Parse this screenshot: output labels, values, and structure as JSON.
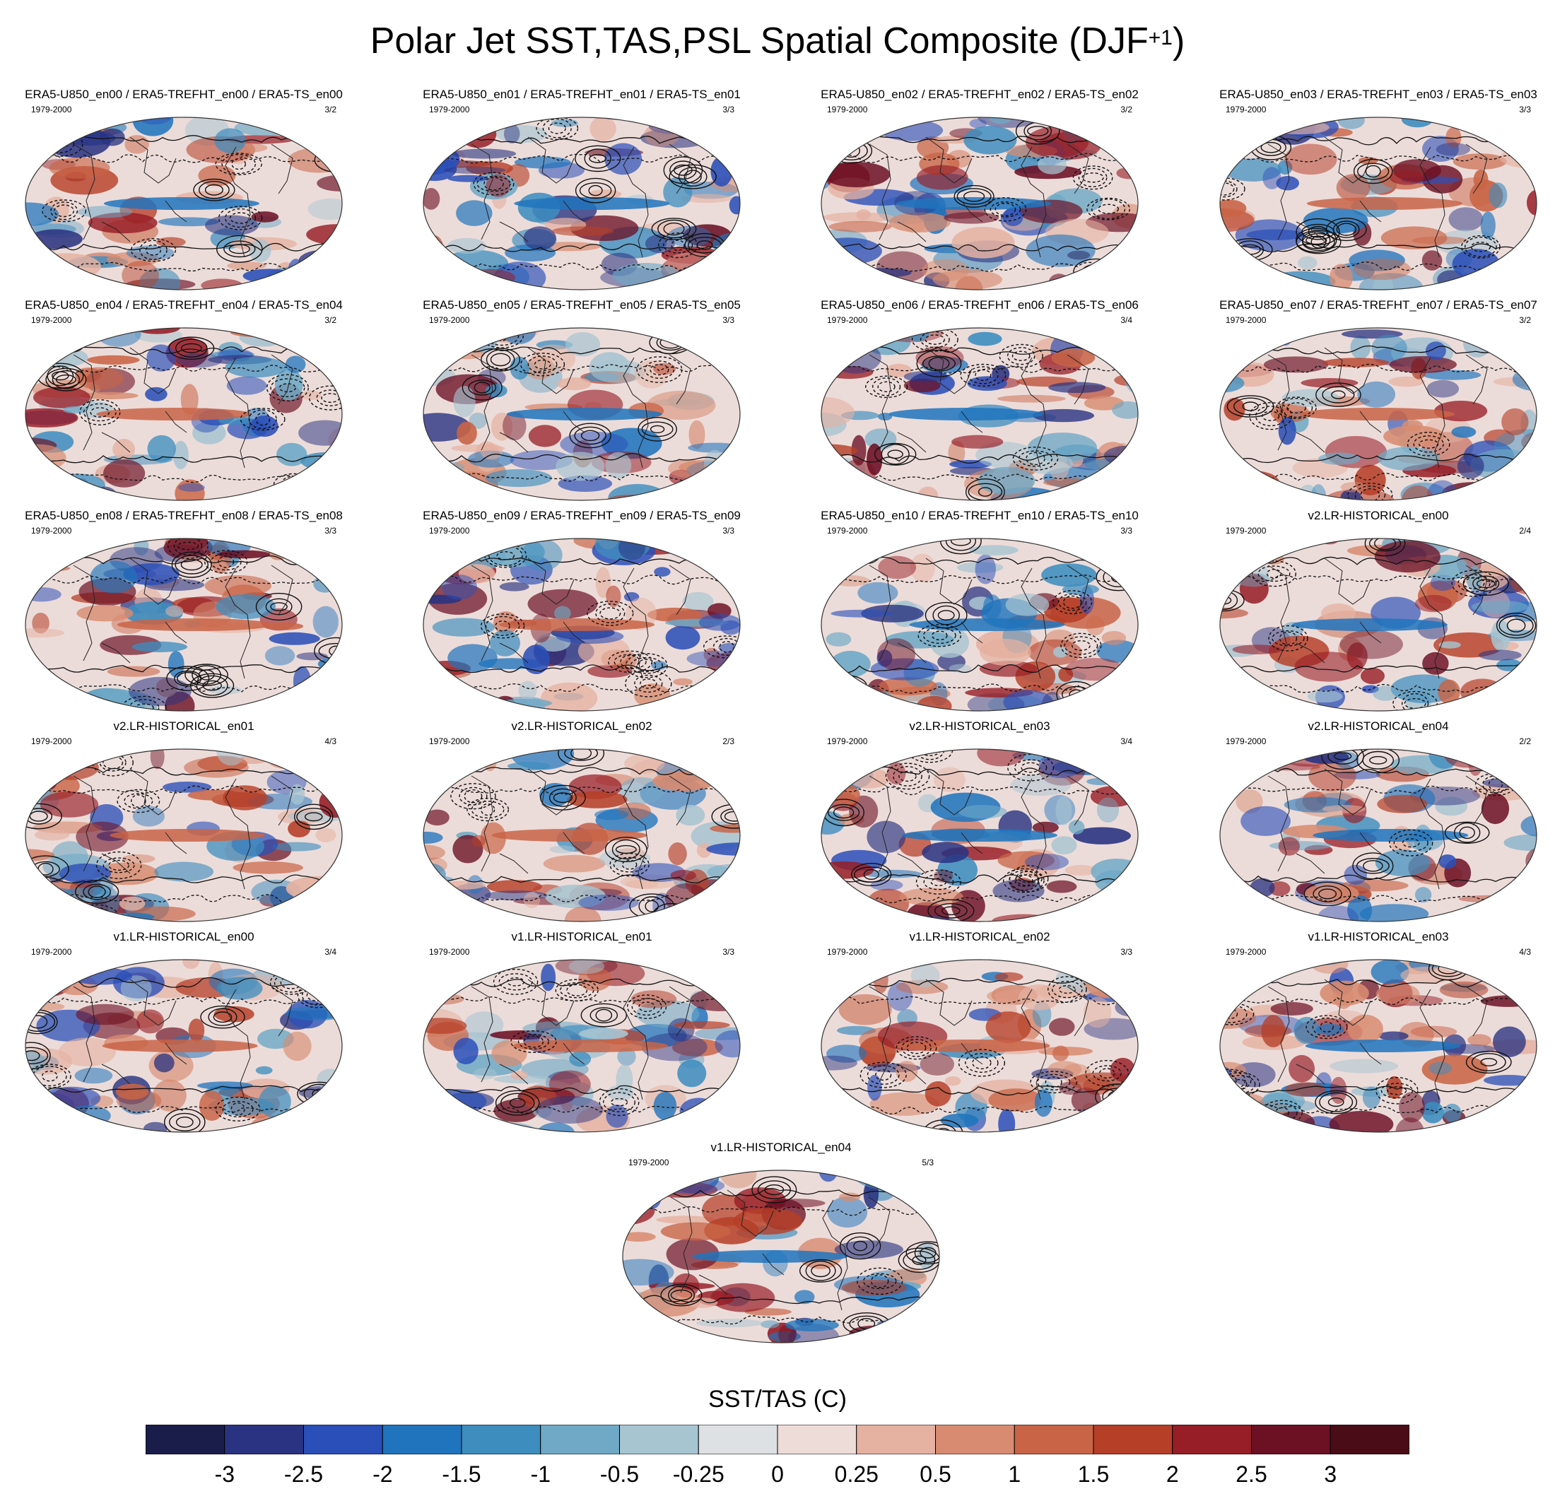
{
  "title": {
    "main": "Polar Jet SST,TAS,PSL Spatial Composite (DJF",
    "sup": "+1",
    "close": ")"
  },
  "colorbar": {
    "title": "SST/TAS (C)",
    "colors": [
      "#1a1d4a",
      "#2a3381",
      "#2b4fb8",
      "#2074bd",
      "#3d8dbf",
      "#6fa9c6",
      "#a7c4d1",
      "#dde1e4",
      "#eedcd8",
      "#e5b1a1",
      "#d88b70",
      "#c96446",
      "#b63f28",
      "#971d26",
      "#6c1024",
      "#4a0c16"
    ],
    "labels": [
      "-3",
      "-2.5",
      "-2",
      "-1.5",
      "-1",
      "-0.5",
      "-0.25",
      "0",
      "0.25",
      "0.5",
      "1",
      "1.5",
      "2",
      "2.5",
      "3"
    ]
  },
  "panels": [
    {
      "title": "ERA5-U850_en00 / ERA5-TREFHT_en00 / ERA5-TS_en00",
      "period": "1979-2000",
      "count": "3/2"
    },
    {
      "title": "ERA5-U850_en01 / ERA5-TREFHT_en01 / ERA5-TS_en01",
      "period": "1979-2000",
      "count": "3/3"
    },
    {
      "title": "ERA5-U850_en02 / ERA5-TREFHT_en02 / ERA5-TS_en02",
      "period": "1979-2000",
      "count": "3/2"
    },
    {
      "title": "ERA5-U850_en03 / ERA5-TREFHT_en03 / ERA5-TS_en03",
      "period": "1979-2000",
      "count": "3/3"
    },
    {
      "title": "ERA5-U850_en04 / ERA5-TREFHT_en04 / ERA5-TS_en04",
      "period": "1979-2000",
      "count": "3/2"
    },
    {
      "title": "ERA5-U850_en05 / ERA5-TREFHT_en05 / ERA5-TS_en05",
      "period": "1979-2000",
      "count": "3/3"
    },
    {
      "title": "ERA5-U850_en06 / ERA5-TREFHT_en06 / ERA5-TS_en06",
      "period": "1979-2000",
      "count": "3/4"
    },
    {
      "title": "ERA5-U850_en07 / ERA5-TREFHT_en07 / ERA5-TS_en07",
      "period": "1979-2000",
      "count": "3/2"
    },
    {
      "title": "ERA5-U850_en08 / ERA5-TREFHT_en08 / ERA5-TS_en08",
      "period": "1979-2000",
      "count": "3/3"
    },
    {
      "title": "ERA5-U850_en09 / ERA5-TREFHT_en09 / ERA5-TS_en09",
      "period": "1979-2000",
      "count": "3/3"
    },
    {
      "title": "ERA5-U850_en10 / ERA5-TREFHT_en10 / ERA5-TS_en10",
      "period": "1979-2000",
      "count": "3/3"
    },
    {
      "title": "v2.LR-HISTORICAL_en00",
      "period": "1979-2000",
      "count": "2/4"
    },
    {
      "title": "v2.LR-HISTORICAL_en01",
      "period": "1979-2000",
      "count": "4/3"
    },
    {
      "title": "v2.LR-HISTORICAL_en02",
      "period": "1979-2000",
      "count": "2/3"
    },
    {
      "title": "v2.LR-HISTORICAL_en03",
      "period": "1979-2000",
      "count": "3/4"
    },
    {
      "title": "v2.LR-HISTORICAL_en04",
      "period": "1979-2000",
      "count": "2/2"
    },
    {
      "title": "v1.LR-HISTORICAL_en00",
      "period": "1979-2000",
      "count": "3/4"
    },
    {
      "title": "v1.LR-HISTORICAL_en01",
      "period": "1979-2000",
      "count": "3/3"
    },
    {
      "title": "v1.LR-HISTORICAL_en02",
      "period": "1979-2000",
      "count": "3/3"
    },
    {
      "title": "v1.LR-HISTORICAL_en03",
      "period": "1979-2000",
      "count": "4/3"
    },
    {
      "title": "v1.LR-HISTORICAL_en04",
      "period": "1979-2000",
      "count": "5/3"
    }
  ]
}
